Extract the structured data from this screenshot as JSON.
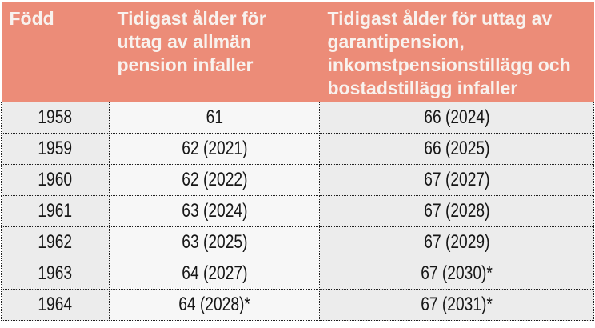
{
  "table": {
    "columns": [
      {
        "id": "fodd",
        "header": "Född"
      },
      {
        "id": "allman-pension",
        "header": "Tidigast ålder för\nuttag av allmän\npension infaller"
      },
      {
        "id": "garantipension",
        "header": "Tidigast ålder för uttag av\ngarantipension,\ninkomstpensionstillägg och\nbostadstillägg infaller"
      }
    ],
    "rows": [
      [
        "1958",
        "61",
        "66 (2024)"
      ],
      [
        "1959",
        "62 (2021)",
        "66 (2025)"
      ],
      [
        "1960",
        "62 (2022)",
        "67 (2027)"
      ],
      [
        "1961",
        "63 (2024)",
        "67 (2028)"
      ],
      [
        "1962",
        "63 (2025)",
        "67 (2029)"
      ],
      [
        "1963",
        "64 (2027)",
        "67 (2030)*"
      ],
      [
        "1964",
        "64 (2028)*",
        "67 (2031)*"
      ]
    ],
    "colors": {
      "header_background": "#EC8C78",
      "header_text": "#F8F2EE",
      "cell_background_odd": "#ECECEC",
      "cell_background_middle": "#F7F7F7",
      "border": "#1E1E1E",
      "cell_text": "#161616",
      "page_background": "#FFFFFF"
    }
  },
  "chart_data": {
    "type": "table",
    "title": "",
    "columns": [
      "Född",
      "Tidigast ålder för uttag av allmän pension infaller",
      "Tidigast ålder för uttag av garantipension, inkomstpensionstillägg och bostadstillägg infaller"
    ],
    "rows": [
      [
        "1958",
        "61",
        "66 (2024)"
      ],
      [
        "1959",
        "62 (2021)",
        "66 (2025)"
      ],
      [
        "1960",
        "62 (2022)",
        "67 (2027)"
      ],
      [
        "1961",
        "63 (2024)",
        "67 (2028)"
      ],
      [
        "1962",
        "63 (2025)",
        "67 (2029)"
      ],
      [
        "1963",
        "64 (2027)",
        "67 (2030)*"
      ],
      [
        "1964",
        "64 (2028)*",
        "67 (2031)*"
      ]
    ]
  }
}
